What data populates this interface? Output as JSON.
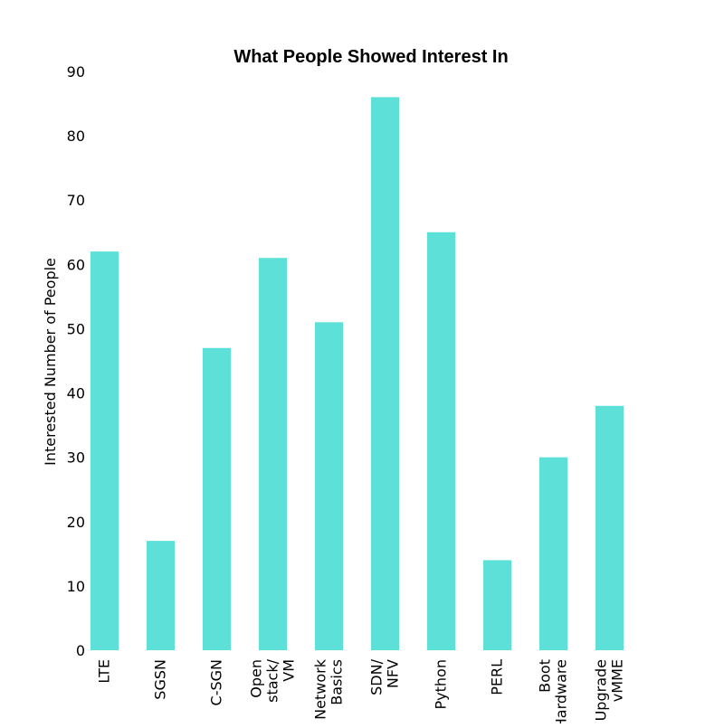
{
  "chart_data": {
    "type": "bar",
    "title": "What People Showed Interest In",
    "xlabel": "",
    "ylabel": "Interested Number of People",
    "categories": [
      [
        "LTE"
      ],
      [
        "SGSN"
      ],
      [
        "C-SGN"
      ],
      [
        "Open",
        "stack/",
        "VM"
      ],
      [
        "Network",
        "Basics"
      ],
      [
        "SDN/",
        "NFV"
      ],
      [
        "Python"
      ],
      [
        "PERL"
      ],
      [
        "Boot",
        "Hardware"
      ],
      [
        "Upgrade",
        "vMME"
      ]
    ],
    "values": [
      62,
      17,
      47,
      61,
      51,
      86,
      65,
      14,
      30,
      38
    ],
    "ylim": [
      0,
      90
    ],
    "yticks": [
      "0",
      "10",
      "20",
      "30",
      "40",
      "50",
      "60",
      "70",
      "80",
      "90"
    ],
    "bar_color": "#5ce0d8",
    "grid": false,
    "legend": "none"
  }
}
